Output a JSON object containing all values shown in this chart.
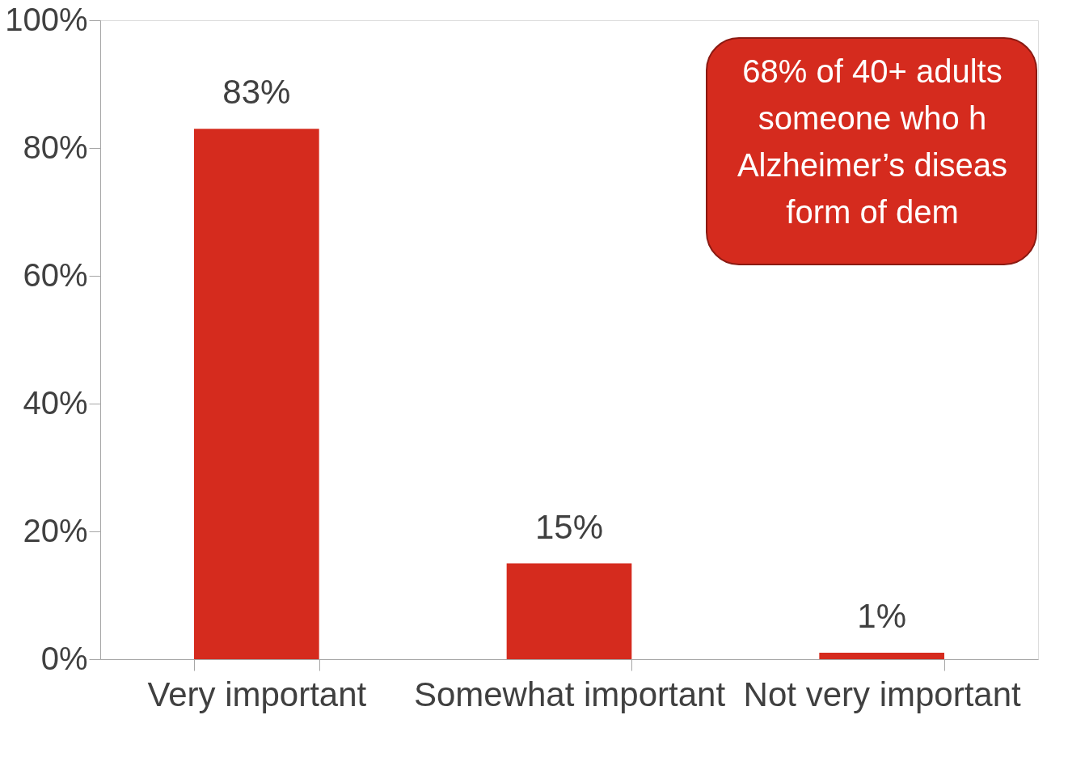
{
  "chart_data": {
    "type": "bar",
    "categories": [
      "Very important",
      "Somewhat important",
      "Not very important"
    ],
    "values": [
      83,
      15,
      1
    ],
    "value_labels": [
      "83%",
      "15%",
      "1%"
    ],
    "color": "#d52b1e",
    "ylim": [
      0,
      100
    ],
    "yticks": [
      {
        "value": 0,
        "label": "0%"
      },
      {
        "value": 20,
        "label": "20%"
      },
      {
        "value": 40,
        "label": "40%"
      },
      {
        "value": 60,
        "label": "60%"
      },
      {
        "value": 80,
        "label": "80%"
      },
      {
        "value": 100,
        "label": "100%"
      }
    ],
    "grid": false,
    "annotations": [
      "68% of 40+ adults\nsomeone who h\nAlzheimer’s diseas\nform of dem"
    ]
  }
}
